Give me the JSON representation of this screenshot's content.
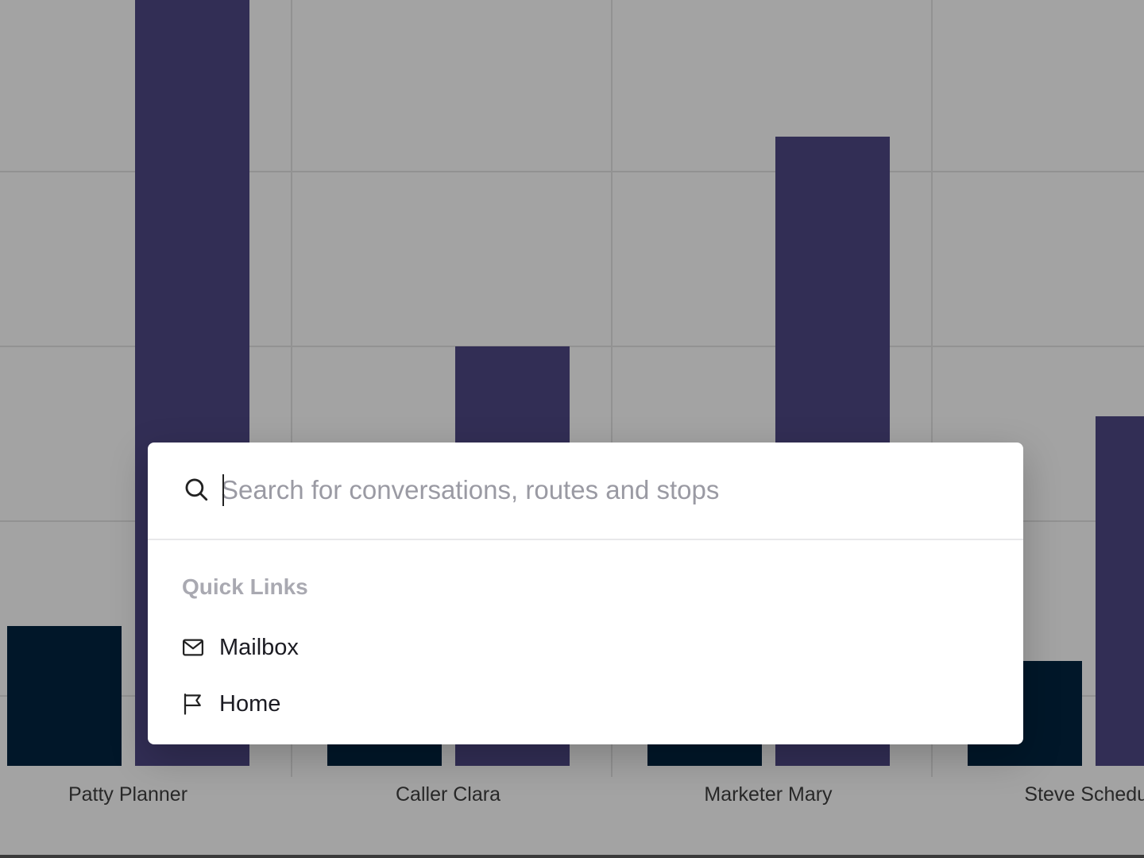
{
  "chart_data": {
    "type": "bar",
    "categories": [
      "Patty Planner",
      "Caller Clara",
      "Marketer Mary",
      "Steve Schedul"
    ],
    "series": [
      {
        "values": [
          4,
          2,
          2,
          3
        ]
      },
      {
        "values": [
          22,
          12,
          18,
          10
        ]
      }
    ],
    "ylim": [
      0,
      22
    ],
    "colors": [
      "#022440",
      "#4f4886"
    ],
    "grid": true
  },
  "search": {
    "placeholder": "Search for conversations, routes and stops",
    "value": "",
    "icon": "search-icon"
  },
  "quick_links": {
    "heading": "Quick Links",
    "items": [
      {
        "label": "Mailbox",
        "icon": "mail-icon"
      },
      {
        "label": "Home",
        "icon": "flag-icon"
      }
    ]
  }
}
